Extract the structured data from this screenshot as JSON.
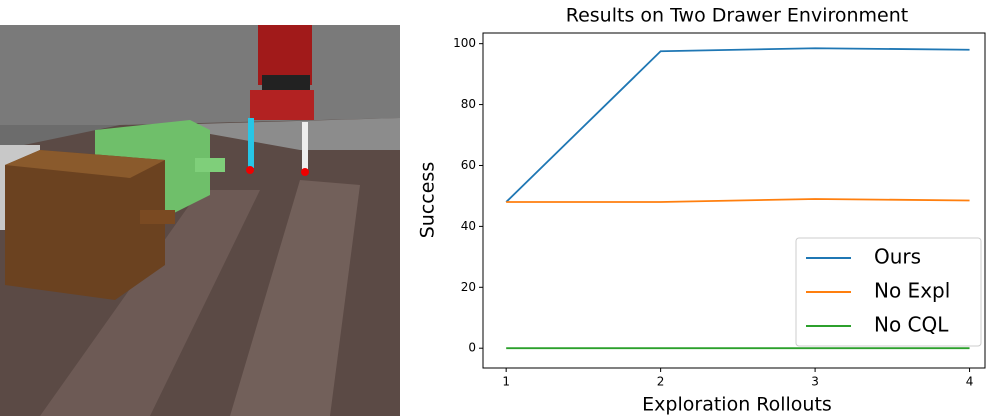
{
  "chart_data": {
    "type": "line",
    "title": "Results on Two Drawer Environment",
    "x_label": "Exploration Rollouts",
    "y_label": "Success",
    "x": [
      1,
      2,
      3,
      4
    ],
    "series": [
      {
        "name": "Ours",
        "color": "#1f77b4",
        "values": [
          48,
          97.5,
          98.5,
          98
        ]
      },
      {
        "name": "No Expl",
        "color": "#ff7f0e",
        "values": [
          48,
          48,
          49,
          48.5
        ]
      },
      {
        "name": "No CQL",
        "color": "#2ca02c",
        "values": [
          0,
          0,
          0,
          0
        ]
      }
    ],
    "xlim": [
      0.85,
      4.1
    ],
    "ylim": [
      -6.5,
      103.5
    ],
    "xticks": [
      1,
      2,
      3,
      4
    ],
    "yticks": [
      0,
      20,
      40,
      60,
      80,
      100
    ],
    "legend": "lower right",
    "grid": false
  }
}
